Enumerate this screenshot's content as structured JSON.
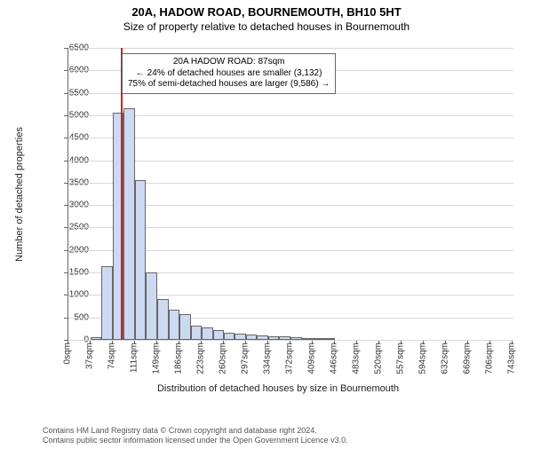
{
  "title": "20A, HADOW ROAD, BOURNEMOUTH, BH10 5HT",
  "subtitle": "Size of property relative to detached houses in Bournemouth",
  "yaxis_label": "Number of detached properties",
  "xaxis_label": "Distribution of detached houses by size in Bournemouth",
  "chart": {
    "type": "histogram",
    "background_color": "#ffffff",
    "grid_color": "#d8d8d8",
    "axis_color": "#666666",
    "bar_fill": "#cdd9f0",
    "bar_border": "#666666",
    "marker_color": "#d02020",
    "ylim": [
      0,
      6500
    ],
    "yticks": [
      0,
      500,
      1000,
      1500,
      2000,
      2500,
      3000,
      3500,
      4000,
      4500,
      5000,
      5500,
      6000,
      6500
    ],
    "x_tick_labels": [
      "0sqm",
      "37sqm",
      "74sqm",
      "111sqm",
      "149sqm",
      "186sqm",
      "223sqm",
      "260sqm",
      "297sqm",
      "334sqm",
      "372sqm",
      "409sqm",
      "446sqm",
      "483sqm",
      "520sqm",
      "557sqm",
      "594sqm",
      "632sqm",
      "669sqm",
      "706sqm",
      "743sqm"
    ],
    "x_max_sqm": 743,
    "bar_bin_width_sqm": 18.5,
    "bars": [
      {
        "x_sqm": 37,
        "count": 50
      },
      {
        "x_sqm": 55.5,
        "count": 1650
      },
      {
        "x_sqm": 74,
        "count": 5050
      },
      {
        "x_sqm": 92.5,
        "count": 5150
      },
      {
        "x_sqm": 111,
        "count": 3550
      },
      {
        "x_sqm": 129.5,
        "count": 1500
      },
      {
        "x_sqm": 149,
        "count": 900
      },
      {
        "x_sqm": 167.5,
        "count": 680
      },
      {
        "x_sqm": 186,
        "count": 580
      },
      {
        "x_sqm": 204.5,
        "count": 320
      },
      {
        "x_sqm": 223,
        "count": 280
      },
      {
        "x_sqm": 241.5,
        "count": 210
      },
      {
        "x_sqm": 260,
        "count": 160
      },
      {
        "x_sqm": 278.5,
        "count": 130
      },
      {
        "x_sqm": 297,
        "count": 110
      },
      {
        "x_sqm": 315.5,
        "count": 90
      },
      {
        "x_sqm": 334,
        "count": 80
      },
      {
        "x_sqm": 352.5,
        "count": 70
      },
      {
        "x_sqm": 372,
        "count": 60
      },
      {
        "x_sqm": 390.5,
        "count": 40
      },
      {
        "x_sqm": 409,
        "count": 30
      },
      {
        "x_sqm": 427.5,
        "count": 20
      }
    ],
    "marker_sqm": 87
  },
  "annotation": {
    "line1": "20A HADOW ROAD: 87sqm",
    "line2": "← 24% of detached houses are smaller (3,132)",
    "line3": "75% of semi-detached houses are larger (9,586) →"
  },
  "footer_line1": "Contains HM Land Registry data © Crown copyright and database right 2024.",
  "footer_line2": "Contains public sector information licensed under the Open Government Licence v3.0."
}
